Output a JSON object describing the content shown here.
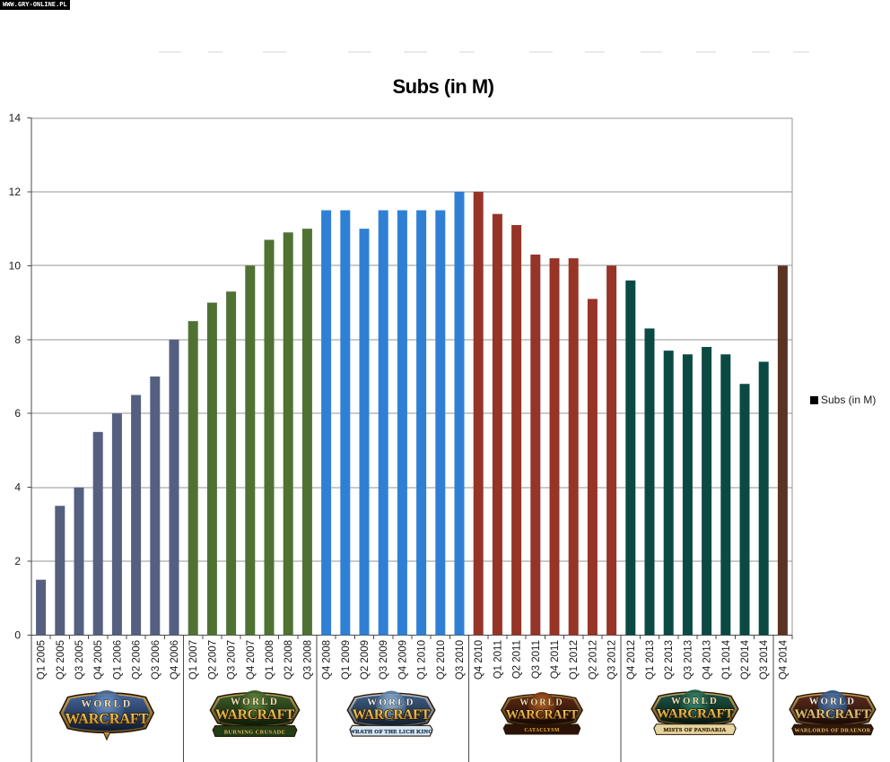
{
  "watermark": "WWW.GRY-ONLINE.PL",
  "chart_data": {
    "type": "bar",
    "title": "Subs (in M)",
    "xlabel": "",
    "ylabel": "",
    "ylim": [
      0,
      14
    ],
    "yticks": [
      0,
      2,
      4,
      6,
      8,
      10,
      12,
      14
    ],
    "grid": true,
    "legend_label": "Subs (in M)",
    "legend_position": "right",
    "categories": [
      "Q1 2005",
      "Q2 2005",
      "Q3 2005",
      "Q4 2005",
      "Q1 2006",
      "Q2 2006",
      "Q3 2006",
      "Q4 2006",
      "Q1 2007",
      "Q2 2007",
      "Q3 2007",
      "Q4 2007",
      "Q1 2008",
      "Q2 2008",
      "Q3 2008",
      "Q4 2008",
      "Q1 2009",
      "Q2 2009",
      "Q3 2009",
      "Q4 2009",
      "Q1 2010",
      "Q2 2010",
      "Q3 2010",
      "Q4 2010",
      "Q1 2011",
      "Q2 2011",
      "Q3 2011",
      "Q4 2011",
      "Q1 2012",
      "Q2 2012",
      "Q3 2012",
      "Q4 2012",
      "Q1 2013",
      "Q2 2013",
      "Q3 2013",
      "Q4 2013",
      "Q1 2014",
      "Q2 2014",
      "Q3 2014",
      "Q4 2014"
    ],
    "values": [
      1.5,
      3.5,
      4.0,
      5.5,
      6.0,
      6.5,
      7.0,
      8.0,
      8.5,
      9.0,
      9.3,
      10.0,
      10.7,
      10.9,
      11.0,
      11.5,
      11.5,
      11.0,
      11.5,
      11.5,
      11.5,
      11.5,
      12.0,
      12.0,
      11.4,
      11.1,
      10.3,
      10.2,
      10.2,
      9.1,
      10.0,
      9.6,
      8.3,
      7.7,
      7.6,
      7.8,
      7.6,
      6.8,
      7.4,
      10.0
    ],
    "groups": [
      {
        "expansion": "World of Warcraft",
        "count": 8,
        "color": "#556080"
      },
      {
        "expansion": "The Burning Crusade",
        "count": 7,
        "color": "#4F7233"
      },
      {
        "expansion": "Wrath of the Lich King",
        "count": 8,
        "color": "#2F80D5"
      },
      {
        "expansion": "Cataclysm",
        "count": 8,
        "color": "#963428"
      },
      {
        "expansion": "Mists of Pandaria",
        "count": 8,
        "color": "#0B4A43"
      },
      {
        "expansion": "Warlords of Draenor",
        "count": 1,
        "color": "#5C3222"
      }
    ],
    "colors": {
      "gridline": "#969696",
      "axis": "#4a4a4a",
      "plot_border": "#969696",
      "tick_label": "#1a1a1a"
    }
  },
  "logos": [
    {
      "id": "classic",
      "word1": "WORLD",
      "word2": "WARCRAFT",
      "subtitle": "",
      "palette": {
        "frame1": "#c9a356",
        "frame2": "#6e5224",
        "inner1": "#44639a",
        "inner2": "#101c30",
        "globe1": "#7aa2d8",
        "globe2": "#24406e",
        "world": "#f2e2b4",
        "wc1": "#ffdf6e",
        "wc2": "#b97a1a",
        "wcStroke": "#2e1c04",
        "banner": "",
        "bannerText": ""
      }
    },
    {
      "id": "burning-crusade",
      "word1": "WORLD",
      "word2": "WARCRAFT",
      "subtitle": "BURNING CRUSADE",
      "palette": {
        "frame1": "#b5a05a",
        "frame2": "#4e4420",
        "inner1": "#3c5c28",
        "inner2": "#0e1c08",
        "globe1": "#6c9a4a",
        "globe2": "#1e3812",
        "world": "#f2e2b4",
        "wc1": "#ffdf6e",
        "wc2": "#c07c1c",
        "wcStroke": "#241804",
        "banner": "#243c16",
        "bannerText": "#e8c85e"
      }
    },
    {
      "id": "wrath-of-the-lich-king",
      "word1": "WORLD",
      "word2": "WARCRAFT",
      "subtitle": "WRATH OF THE LICH KING",
      "palette": {
        "frame1": "#b9bec8",
        "frame2": "#565c68",
        "inner1": "#3e5e84",
        "inner2": "#14202e",
        "globe1": "#a8cce8",
        "globe2": "#2e5078",
        "world": "#eef2f8",
        "wc1": "#ffdf6e",
        "wc2": "#bd7d20",
        "wcStroke": "#2a1a06",
        "banner": "#d8e8f4",
        "bannerText": "#2a4a78"
      }
    },
    {
      "id": "cataclysm",
      "word1": "WORLD",
      "word2": "WARCRAFT",
      "subtitle": "CATACLYSM",
      "palette": {
        "frame1": "#a57a38",
        "frame2": "#402a10",
        "inner1": "#5e2a14",
        "inner2": "#170804",
        "globe1": "#c86a28",
        "globe2": "#481a08",
        "world": "#f2dfa8",
        "wc1": "#ffdf6e",
        "wc2": "#bc7618",
        "wcStroke": "#201004",
        "banner": "#2c1206",
        "bannerText": "#f0b840"
      }
    },
    {
      "id": "mists-of-pandaria",
      "word1": "WORLD",
      "word2": "WARCRAFT",
      "subtitle": "MISTS OF PANDARIA",
      "palette": {
        "frame1": "#c3a660",
        "frame2": "#5c4a22",
        "inner1": "#1c5446",
        "inner2": "#061810",
        "globe1": "#3e9a7e",
        "globe2": "#0c3428",
        "world": "#f2e2b4",
        "wc1": "#ffdf6e",
        "wc2": "#bd7d20",
        "wcStroke": "#241804",
        "banner": "#e6d5a0",
        "bannerText": "#50380e"
      }
    },
    {
      "id": "warlords-of-draenor",
      "word1": "WORLD",
      "word2": "WARCRAFT",
      "subtitle": "WARLORDS OF DRAENOR",
      "palette": {
        "frame1": "#c0a058",
        "frame2": "#564020",
        "inner1": "#5c2c1c",
        "inner2": "#1c0a06",
        "globe1": "#5a8cc8",
        "globe2": "#1c3a66",
        "world": "#f4f0e4",
        "wc1": "#f2dc9c",
        "wc2": "#b98e3c",
        "wcStroke": "#2a1c08",
        "banner": "#33180a",
        "bannerText": "#e8c878"
      }
    }
  ]
}
